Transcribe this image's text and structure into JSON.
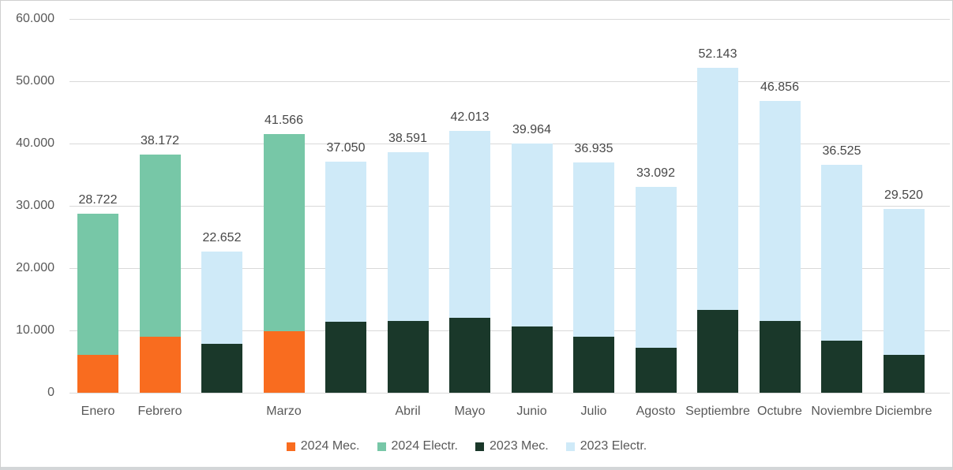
{
  "frame": {
    "border_color": "#d0d0d0",
    "bottom_edge_color": "#d3d6d8",
    "background": "#ffffff"
  },
  "chart_data": {
    "type": "bar",
    "variant": "stacked",
    "title": "",
    "grid": true,
    "grid_color": "#d9d9d9",
    "legend_position": "bottom",
    "segment_values_estimated": true,
    "y_axis": {
      "min": 0,
      "max": 60000,
      "step": 10000,
      "label_color": "#595959",
      "ticks": [
        {
          "value": 0,
          "label": "0"
        },
        {
          "value": 10000,
          "label": "10.000"
        },
        {
          "value": 20000,
          "label": "20.000"
        },
        {
          "value": 30000,
          "label": "30.000"
        },
        {
          "value": 40000,
          "label": "40.000"
        },
        {
          "value": 50000,
          "label": "50.000"
        },
        {
          "value": 60000,
          "label": "60.000"
        }
      ]
    },
    "x_axis": {
      "label_color": "#595959"
    },
    "series_colors": {
      "2024 Mec.": "#f96c1f",
      "2024 Electr.": "#77c7a7",
      "2023 Mec.": "#1a382a",
      "2023 Electr.": "#cfeaf8"
    },
    "legend": {
      "items": [
        {
          "label": "2024 Mec.",
          "color": "#f96c1f"
        },
        {
          "label": "2024 Electr.",
          "color": "#77c7a7"
        },
        {
          "label": "2023 Mec.",
          "color": "#1a382a"
        },
        {
          "label": "2023 Electr.",
          "color": "#cfeaf8"
        }
      ]
    },
    "total_label_color": "#474747",
    "bars": [
      {
        "slot": 0,
        "month_label": "Enero",
        "year": "2024",
        "total": 28722,
        "total_label": "28.722",
        "segments": [
          {
            "series": "2024 Mec.",
            "value": 6100
          },
          {
            "series": "2024 Electr.",
            "value": 22622
          }
        ]
      },
      {
        "slot": 1,
        "month_label": "Febrero",
        "year": "2024",
        "total": 38172,
        "total_label": "38.172",
        "segments": [
          {
            "series": "2024 Mec.",
            "value": 9000
          },
          {
            "series": "2024 Electr.",
            "value": 29172
          }
        ]
      },
      {
        "slot": 2,
        "month_label": "",
        "year": "2023",
        "total": 22652,
        "total_label": "22.652",
        "segments": [
          {
            "series": "2023 Mec.",
            "value": 7800
          },
          {
            "series": "2023 Electr.",
            "value": 14852
          }
        ]
      },
      {
        "slot": 3,
        "month_label": "Marzo",
        "year": "2024",
        "total": 41566,
        "total_label": "41.566",
        "segments": [
          {
            "series": "2024 Mec.",
            "value": 9900
          },
          {
            "series": "2024 Electr.",
            "value": 31666
          }
        ]
      },
      {
        "slot": 4,
        "month_label": "",
        "year": "2023",
        "total": 37050,
        "total_label": "37.050",
        "segments": [
          {
            "series": "2023 Mec.",
            "value": 11400
          },
          {
            "series": "2023 Electr.",
            "value": 25650
          }
        ]
      },
      {
        "slot": 5,
        "month_label": "Abril",
        "year": "2023",
        "total": 38591,
        "total_label": "38.591",
        "segments": [
          {
            "series": "2023 Mec.",
            "value": 11500
          },
          {
            "series": "2023 Electr.",
            "value": 27091
          }
        ]
      },
      {
        "slot": 6,
        "month_label": "Mayo",
        "year": "2023",
        "total": 42013,
        "total_label": "42.013",
        "segments": [
          {
            "series": "2023 Mec.",
            "value": 12000
          },
          {
            "series": "2023 Electr.",
            "value": 30013
          }
        ]
      },
      {
        "slot": 7,
        "month_label": "Junio",
        "year": "2023",
        "total": 39964,
        "total_label": "39.964",
        "segments": [
          {
            "series": "2023 Mec.",
            "value": 10600
          },
          {
            "series": "2023 Electr.",
            "value": 29364
          }
        ]
      },
      {
        "slot": 8,
        "month_label": "Julio",
        "year": "2023",
        "total": 36935,
        "total_label": "36.935",
        "segments": [
          {
            "series": "2023 Mec.",
            "value": 9000
          },
          {
            "series": "2023 Electr.",
            "value": 27935
          }
        ]
      },
      {
        "slot": 9,
        "month_label": "Agosto",
        "year": "2023",
        "total": 33092,
        "total_label": "33.092",
        "segments": [
          {
            "series": "2023 Mec.",
            "value": 7200
          },
          {
            "series": "2023 Electr.",
            "value": 25892
          }
        ]
      },
      {
        "slot": 10,
        "month_label": "Septiembre",
        "year": "2023",
        "total": 52143,
        "total_label": "52.143",
        "segments": [
          {
            "series": "2023 Mec.",
            "value": 13300
          },
          {
            "series": "2023 Electr.",
            "value": 38843
          }
        ]
      },
      {
        "slot": 11,
        "month_label": "Octubre",
        "year": "2023",
        "total": 46856,
        "total_label": "46.856",
        "segments": [
          {
            "series": "2023 Mec.",
            "value": 11500
          },
          {
            "series": "2023 Electr.",
            "value": 35356
          }
        ]
      },
      {
        "slot": 12,
        "month_label": "Noviembre",
        "year": "2023",
        "total": 36525,
        "total_label": "36.525",
        "segments": [
          {
            "series": "2023 Mec.",
            "value": 8400
          },
          {
            "series": "2023 Electr.",
            "value": 28125
          }
        ]
      },
      {
        "slot": 13,
        "month_label": "Diciembre",
        "year": "2023",
        "total": 29520,
        "total_label": "29.520",
        "segments": [
          {
            "series": "2023 Mec.",
            "value": 6100
          },
          {
            "series": "2023 Electr.",
            "value": 23420
          }
        ]
      }
    ]
  }
}
